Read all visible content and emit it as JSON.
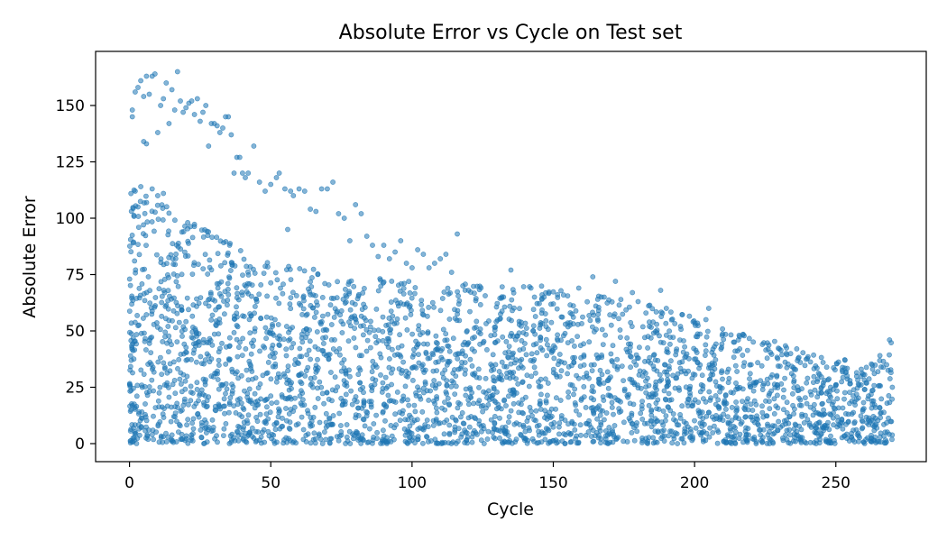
{
  "chart_data": {
    "type": "scatter",
    "title": "Absolute Error vs Cycle on Test set",
    "xlabel": "Cycle",
    "ylabel": "Absolute Error",
    "xlim": [
      -12,
      282
    ],
    "ylim": [
      -8,
      174
    ],
    "xticks": [
      0,
      50,
      100,
      150,
      200,
      250
    ],
    "yticks": [
      0,
      25,
      50,
      75,
      100,
      125,
      150
    ],
    "grid": false,
    "color": "#1f77b4",
    "point_opacity": 0.55,
    "series": [
      {
        "generator": {
          "cycle_range": [
            0,
            270
          ],
          "n_points": 3200,
          "seed": 7,
          "upper_envelope": [
            [
              0,
              115
            ],
            [
              20,
              100
            ],
            [
              50,
              80
            ],
            [
              100,
              72
            ],
            [
              150,
              70
            ],
            [
              200,
              58
            ],
            [
              230,
              45
            ],
            [
              260,
              35
            ],
            [
              270,
              46
            ]
          ],
          "mass_decay_cycles": 160
        },
        "points": [
          [
            1,
            148
          ],
          [
            1,
            145
          ],
          [
            2,
            156
          ],
          [
            3,
            158
          ],
          [
            4,
            161
          ],
          [
            5,
            154
          ],
          [
            6,
            163
          ],
          [
            7,
            155
          ],
          [
            8,
            163
          ],
          [
            9,
            164
          ],
          [
            10,
            138
          ],
          [
            11,
            150
          ],
          [
            12,
            153
          ],
          [
            13,
            160
          ],
          [
            14,
            142
          ],
          [
            15,
            157
          ],
          [
            16,
            148
          ],
          [
            17,
            165
          ],
          [
            18,
            152
          ],
          [
            19,
            147
          ],
          [
            20,
            149
          ],
          [
            21,
            151
          ],
          [
            22,
            152
          ],
          [
            23,
            146
          ],
          [
            24,
            153
          ],
          [
            25,
            143
          ],
          [
            26,
            147
          ],
          [
            27,
            150
          ],
          [
            28,
            132
          ],
          [
            29,
            142
          ],
          [
            30,
            142
          ],
          [
            31,
            141
          ],
          [
            32,
            138
          ],
          [
            33,
            140
          ],
          [
            34,
            145
          ],
          [
            35,
            145
          ],
          [
            36,
            137
          ],
          [
            37,
            120
          ],
          [
            38,
            127
          ],
          [
            39,
            127
          ],
          [
            40,
            120
          ],
          [
            41,
            118
          ],
          [
            42,
            120
          ],
          [
            44,
            132
          ],
          [
            46,
            116
          ],
          [
            48,
            112
          ],
          [
            50,
            115
          ],
          [
            52,
            118
          ],
          [
            53,
            120
          ],
          [
            55,
            113
          ],
          [
            56,
            95
          ],
          [
            57,
            112
          ],
          [
            58,
            110
          ],
          [
            60,
            113
          ],
          [
            62,
            112
          ],
          [
            64,
            104
          ],
          [
            66,
            103
          ],
          [
            68,
            113
          ],
          [
            70,
            113
          ],
          [
            72,
            116
          ],
          [
            74,
            102
          ],
          [
            76,
            100
          ],
          [
            78,
            90
          ],
          [
            80,
            106
          ],
          [
            82,
            102
          ],
          [
            84,
            92
          ],
          [
            86,
            88
          ],
          [
            88,
            83
          ],
          [
            90,
            88
          ],
          [
            92,
            82
          ],
          [
            94,
            85
          ],
          [
            96,
            90
          ],
          [
            98,
            80
          ],
          [
            100,
            78
          ],
          [
            102,
            86
          ],
          [
            104,
            84
          ],
          [
            106,
            78
          ],
          [
            108,
            80
          ],
          [
            110,
            82
          ],
          [
            112,
            84
          ],
          [
            114,
            76
          ],
          [
            116,
            93
          ],
          [
            118,
            70
          ],
          [
            120,
            68
          ],
          [
            135,
            77
          ],
          [
            5,
            134
          ],
          [
            6,
            133
          ],
          [
            2,
            112
          ],
          [
            4,
            114
          ],
          [
            8,
            113
          ],
          [
            10,
            110
          ],
          [
            3,
            105
          ],
          [
            12,
            111
          ],
          [
            266,
            34
          ],
          [
            268,
            35
          ],
          [
            269,
            46
          ],
          [
            270,
            25
          ],
          [
            263,
            33
          ],
          [
            259,
            33
          ],
          [
            255,
            28
          ],
          [
            250,
            26
          ],
          [
            246,
            28
          ],
          [
            240,
            29
          ],
          [
            235,
            30
          ],
          [
            230,
            42
          ],
          [
            224,
            44
          ],
          [
            226,
            42
          ],
          [
            220,
            35
          ],
          [
            215,
            32
          ],
          [
            212,
            33
          ],
          [
            207,
            43
          ],
          [
            204,
            55
          ],
          [
            205,
            60
          ],
          [
            195,
            52
          ],
          [
            190,
            60
          ],
          [
            188,
            68
          ],
          [
            180,
            63
          ],
          [
            178,
            67
          ],
          [
            172,
            72
          ],
          [
            168,
            65
          ],
          [
            164,
            74
          ],
          [
            159,
            69
          ],
          [
            156,
            58
          ],
          [
            150,
            62
          ],
          [
            146,
            66
          ]
        ]
      }
    ]
  }
}
